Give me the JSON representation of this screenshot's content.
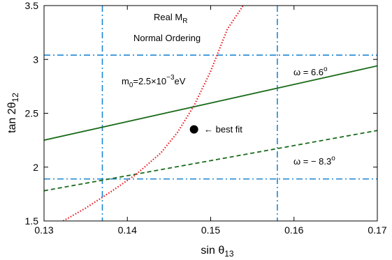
{
  "chart_data": {
    "type": "line",
    "xlabel": "sin θ13",
    "xlabel_base": "sin θ",
    "xlabel_sub": "13",
    "ylabel": "tan 2θ12",
    "ylabel_base": "tan 2θ",
    "ylabel_sub": "12",
    "xlim": [
      0.13,
      0.17
    ],
    "ylim": [
      1.5,
      3.5
    ],
    "xticks": [
      0.13,
      0.14,
      0.15,
      0.16,
      0.17
    ],
    "xtick_labels": [
      "0.13",
      "0.14",
      "0.15",
      "0.16",
      "0.17"
    ],
    "yticks": [
      1.5,
      2,
      2.5,
      3,
      3.5
    ],
    "ytick_labels": [
      "1.5",
      "2",
      "2.5",
      "3",
      "3.5"
    ],
    "grid": false,
    "series": [
      {
        "name": "ω = 6.6°",
        "style": "solid",
        "color": "#1a6b1a",
        "x": [
          0.13,
          0.17
        ],
        "y": [
          2.25,
          2.94
        ]
      },
      {
        "name": "ω = − 8.3°",
        "style": "dashed",
        "color": "#1a6b1a",
        "x": [
          0.13,
          0.17
        ],
        "y": [
          1.78,
          2.34
        ]
      },
      {
        "name": "m0=2.5×10−3eV",
        "style": "dotted",
        "color": "#e8151b",
        "x": [
          0.1323,
          0.135,
          0.138,
          0.141,
          0.144,
          0.146,
          0.148,
          0.15,
          0.152,
          0.1539
        ],
        "y": [
          1.5,
          1.62,
          1.77,
          1.93,
          2.13,
          2.32,
          2.57,
          2.89,
          3.28,
          3.5
        ]
      }
    ],
    "reference_lines": {
      "color": "#1e86d2",
      "style": "dash-dot",
      "vertical_x": [
        0.137,
        0.158
      ],
      "horizontal_y": [
        1.89,
        3.04
      ]
    },
    "best_fit": {
      "x": 0.148,
      "y": 2.35,
      "label": "← best fit"
    },
    "annotations": {
      "title_line1_base": "Real M",
      "title_line1_sub": "R",
      "title_line2": "Normal Ordering",
      "omega_pos_base": "ω = 6.6",
      "omega_pos_sup": "o",
      "omega_neg_base": "ω = − 8.3",
      "omega_neg_sup": "o",
      "m0_base": "m",
      "m0_sub": "0",
      "m0_mid": "=2.5×10",
      "m0_sup": "−3",
      "m0_end": "eV"
    }
  }
}
